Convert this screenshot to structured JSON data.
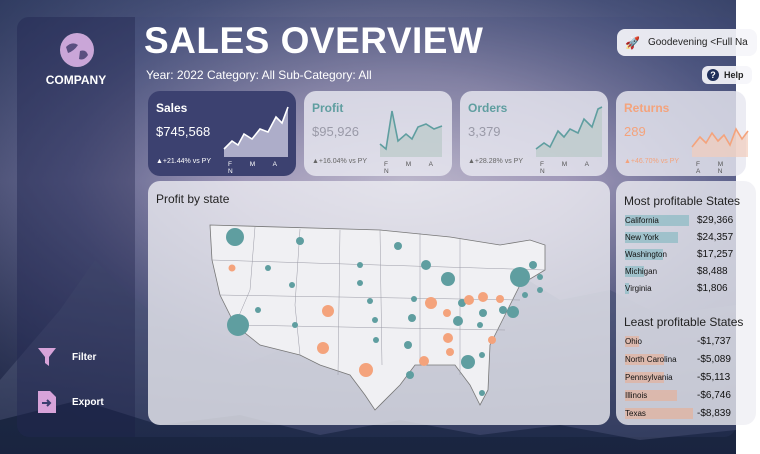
{
  "colors": {
    "accent_teal": "#5f9ea0",
    "accent_orange": "#f4a37c",
    "kpi_dark": "#3a3f6e"
  },
  "sidebar": {
    "company": "COMPANY",
    "filter_label": "Filter",
    "export_label": "Export",
    "icons": [
      "globe-icon",
      "funnel-icon",
      "export-icon"
    ]
  },
  "header": {
    "title": "SALES OVERVIEW",
    "subtitle": "Year: 2022 Category: All Sub-Category: All",
    "user_greeting": "Goodevening <Full Na",
    "help_label": "Help"
  },
  "kpis": [
    {
      "label": "Sales",
      "value": "$745,568",
      "delta": "▲+21.44% vs PY",
      "months": "F M A N"
    },
    {
      "label": "Profit",
      "value": "$95,926",
      "delta": "▲+16.04% vs PY",
      "months": "F M A N"
    },
    {
      "label": "Orders",
      "value": "3,379",
      "delta": "▲+28.28% vs PY",
      "months": "F M A N"
    },
    {
      "label": "Returns",
      "value": "289",
      "delta": "▲+46.70% vs PY",
      "months": "F M A N"
    }
  ],
  "map": {
    "title": "Profit by state"
  },
  "most_profitable": {
    "title": "Most profitable States",
    "rows": [
      {
        "state": "California",
        "value": "$29,366",
        "ratio": 1.0
      },
      {
        "state": "New York",
        "value": "$24,357",
        "ratio": 0.83
      },
      {
        "state": "Washington",
        "value": "$17,257",
        "ratio": 0.59
      },
      {
        "state": "Michigan",
        "value": "$8,488",
        "ratio": 0.29
      },
      {
        "state": "Virginia",
        "value": "$1,806",
        "ratio": 0.06
      }
    ]
  },
  "least_profitable": {
    "title": "Least profitable States",
    "rows": [
      {
        "state": "Ohio",
        "value": "-$1,737",
        "ratio": 0.2
      },
      {
        "state": "North Carolina",
        "value": "-$5,089",
        "ratio": 0.58
      },
      {
        "state": "Pennsylvania",
        "value": "-$5,113",
        "ratio": 0.58
      },
      {
        "state": "Illinois",
        "value": "-$6,746",
        "ratio": 0.76
      },
      {
        "state": "Texas",
        "value": "-$8,839",
        "ratio": 1.0
      }
    ]
  }
}
